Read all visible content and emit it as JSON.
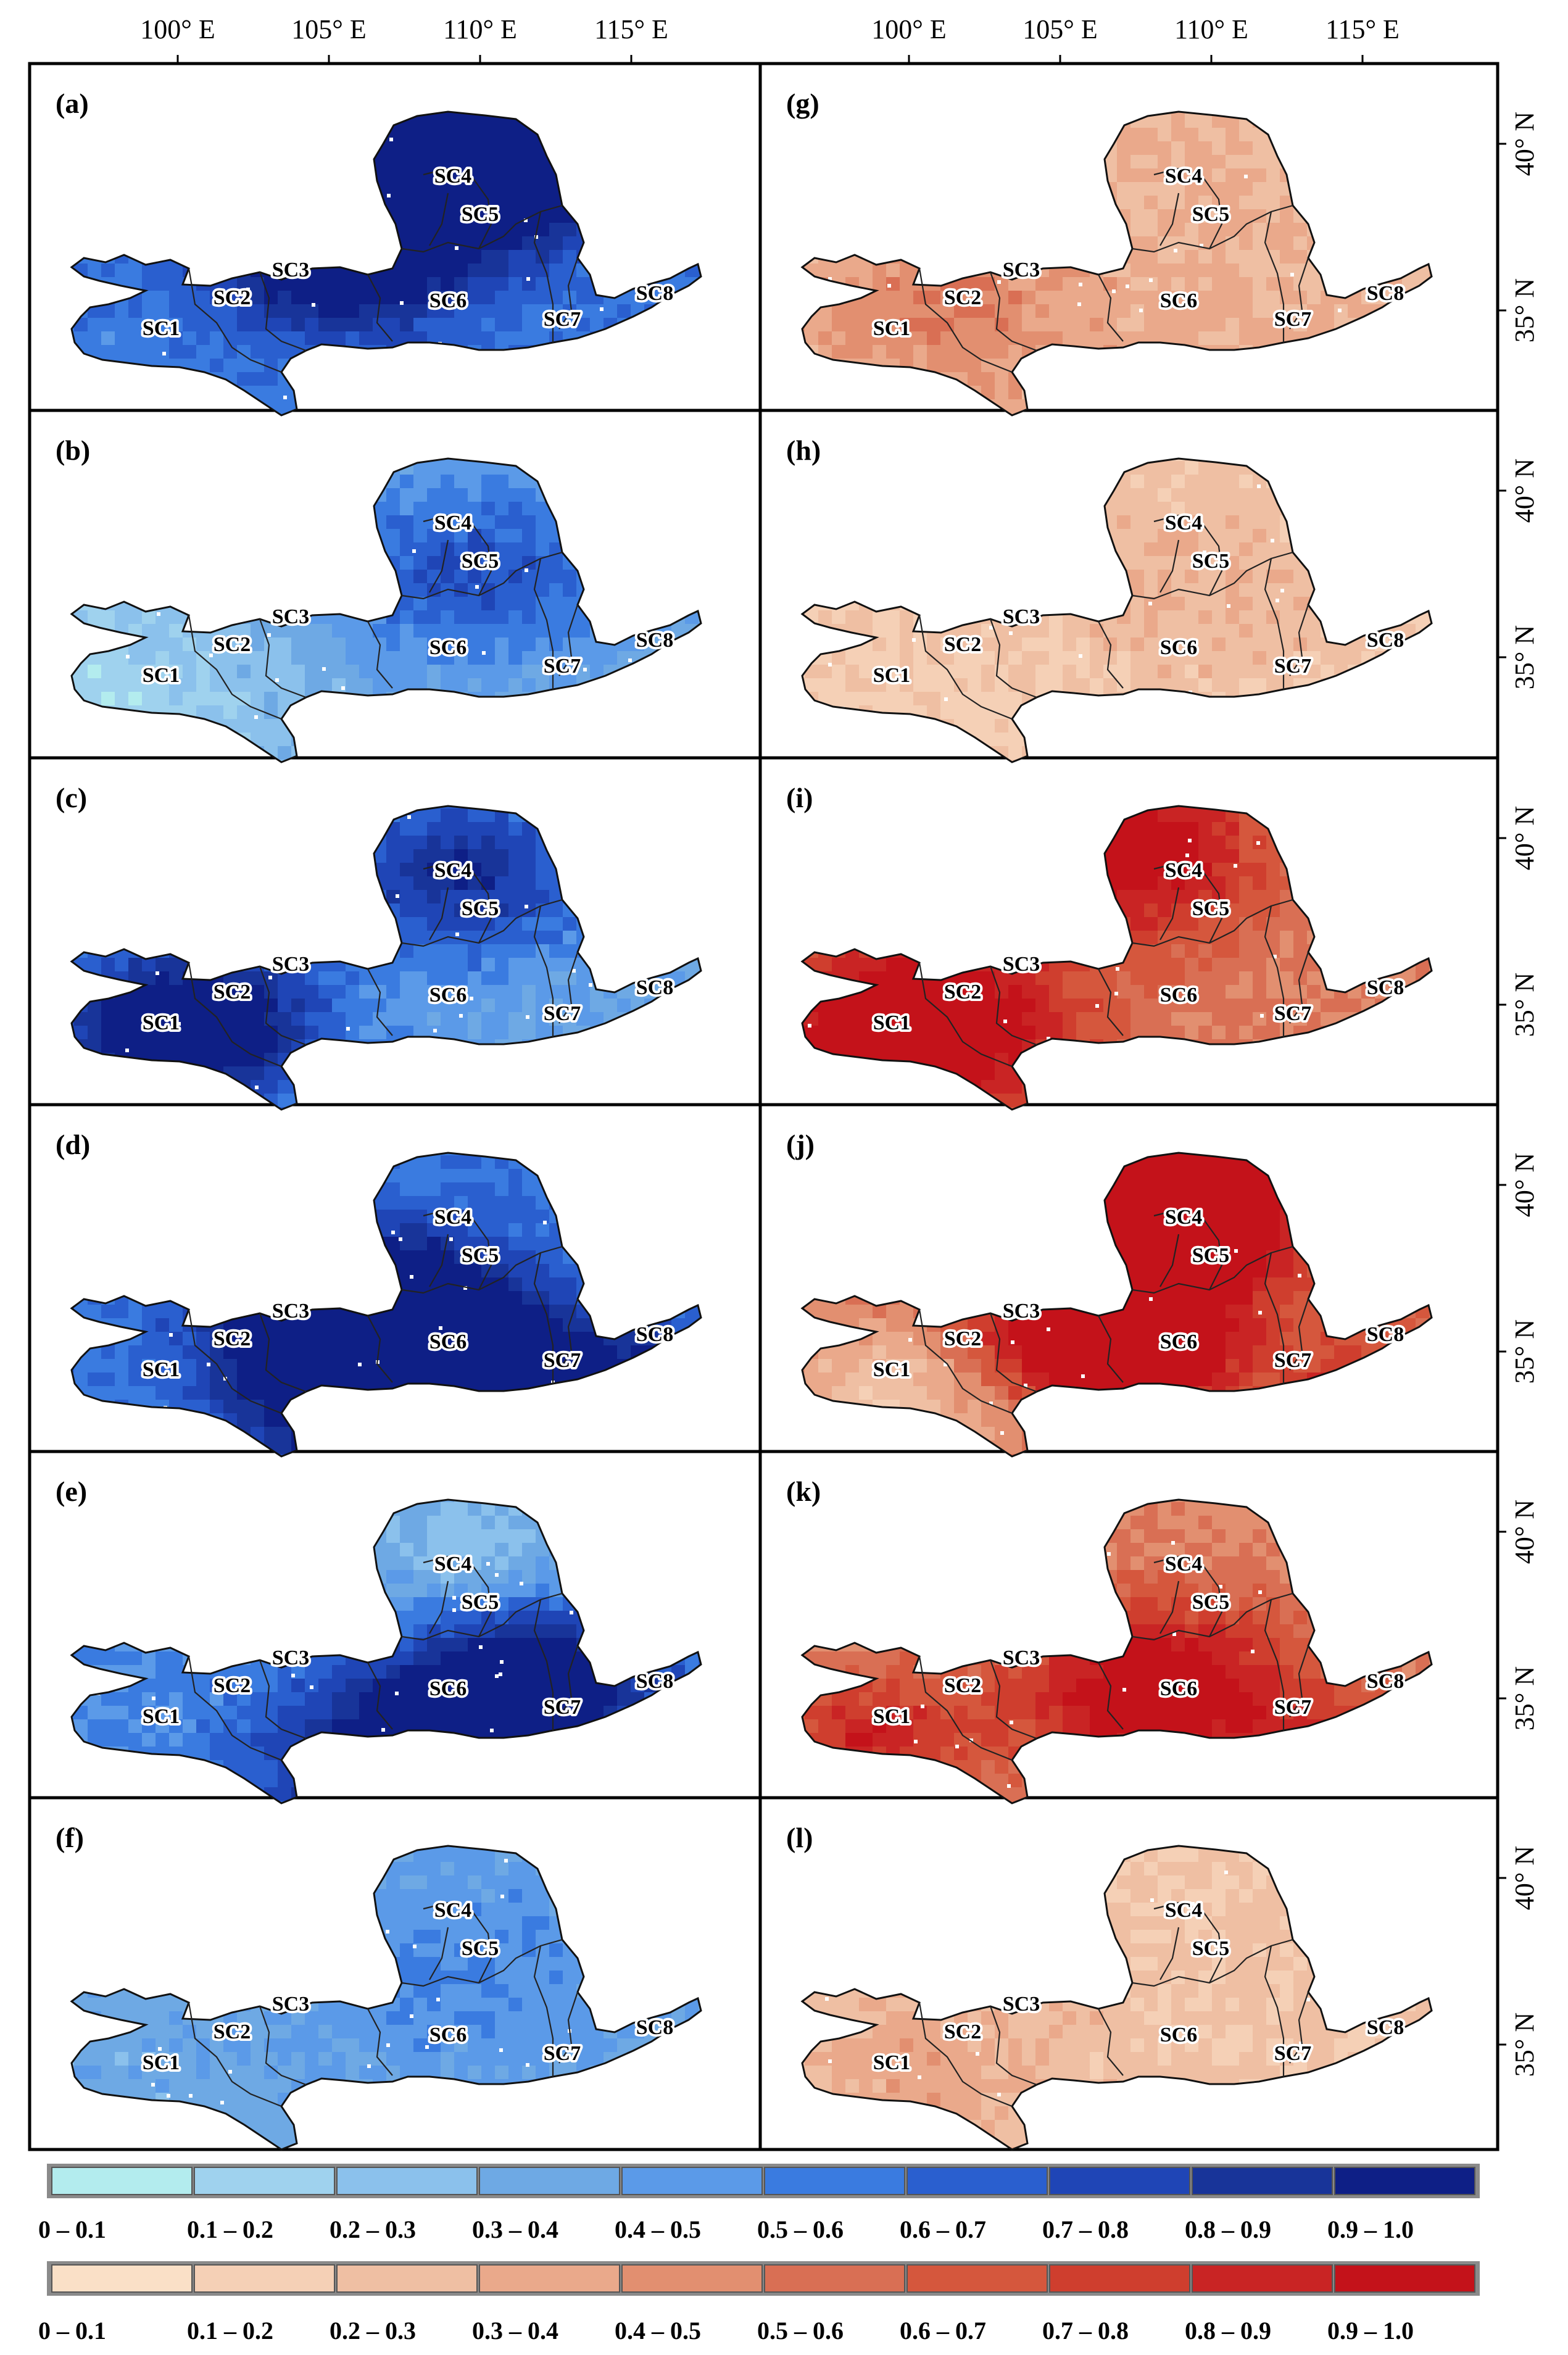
{
  "figure": {
    "lon_labels": [
      "100° E",
      "105° E",
      "110° E",
      "115° E"
    ],
    "lat_labels": [
      "40° N",
      "35° N"
    ],
    "subcatchments": [
      "SC1",
      "SC2",
      "SC3",
      "SC4",
      "SC5",
      "SC6",
      "SC7",
      "SC8"
    ],
    "panels": [
      {
        "label": "(a)",
        "ramp": "blue",
        "base": 0.55,
        "hot": [
          [
            0.58,
            0.12,
            0.95,
            0.16
          ],
          [
            0.42,
            0.45,
            0.6,
            0.12
          ]
        ]
      },
      {
        "label": "(b)",
        "ramp": "blue",
        "base": 0.28,
        "hot": [
          [
            0.62,
            0.35,
            0.42,
            0.18
          ],
          [
            0.1,
            0.72,
            -0.15,
            0.14
          ]
        ]
      },
      {
        "label": "(c)",
        "ramp": "blue",
        "base": 0.38,
        "hot": [
          [
            0.2,
            0.68,
            0.8,
            0.14
          ],
          [
            0.55,
            0.95,
            0.55,
            0.08
          ],
          [
            0.6,
            0.22,
            0.5,
            0.14
          ]
        ]
      },
      {
        "label": "(d)",
        "ramp": "blue",
        "base": 0.55,
        "hot": [
          [
            0.55,
            0.75,
            0.75,
            0.16
          ],
          [
            0.45,
            0.5,
            0.7,
            0.14
          ],
          [
            0.8,
            0.8,
            0.6,
            0.12
          ]
        ]
      },
      {
        "label": "(e)",
        "ramp": "blue",
        "base": 0.5,
        "hot": [
          [
            0.55,
            0.8,
            0.7,
            0.15
          ],
          [
            0.72,
            0.55,
            0.55,
            0.12
          ],
          [
            0.6,
            0.15,
            -0.25,
            0.12
          ]
        ]
      },
      {
        "label": "(f)",
        "ramp": "blue",
        "base": 0.35,
        "hot": [
          [
            0.6,
            0.4,
            0.15,
            0.2
          ]
        ]
      },
      {
        "label": "(g)",
        "ramp": "red",
        "base": 0.3,
        "hot": [
          [
            0.25,
            0.6,
            0.2,
            0.14
          ],
          [
            0.58,
            0.92,
            0.3,
            0.06
          ]
        ]
      },
      {
        "label": "(h)",
        "ramp": "red",
        "base": 0.18,
        "hot": [
          [
            0.62,
            0.4,
            0.12,
            0.18
          ]
        ]
      },
      {
        "label": "(i)",
        "ramp": "red",
        "base": 0.5,
        "hot": [
          [
            0.2,
            0.68,
            0.7,
            0.15
          ],
          [
            0.5,
            0.15,
            0.55,
            0.14
          ],
          [
            0.56,
            0.95,
            0.5,
            0.06
          ]
        ]
      },
      {
        "label": "(j)",
        "ramp": "red",
        "base": 0.55,
        "hot": [
          [
            0.47,
            0.55,
            0.85,
            0.13
          ],
          [
            0.58,
            0.15,
            0.75,
            0.14
          ],
          [
            0.88,
            0.85,
            0.7,
            0.1
          ],
          [
            0.18,
            0.75,
            -0.35,
            0.14
          ]
        ]
      },
      {
        "label": "(k)",
        "ramp": "red",
        "base": 0.45,
        "hot": [
          [
            0.55,
            0.6,
            0.6,
            0.16
          ],
          [
            0.88,
            0.82,
            0.55,
            0.1
          ],
          [
            0.12,
            0.72,
            0.4,
            0.1
          ]
        ]
      },
      {
        "label": "(l)",
        "ramp": "red",
        "base": 0.22,
        "hot": [
          [
            0.2,
            0.7,
            0.15,
            0.15
          ]
        ]
      }
    ]
  },
  "legend": {
    "classes": [
      "0 – 0.1",
      "0.1 – 0.2",
      "0.2 – 0.3",
      "0.3 – 0.4",
      "0.4 – 0.5",
      "0.5 – 0.6",
      "0.6 – 0.7",
      "0.7 – 0.8",
      "0.8 – 0.9",
      "0.9 – 1.0"
    ],
    "blue_colors": [
      "#b3ecee",
      "#9fd2ee",
      "#8bc1ec",
      "#6ea9e4",
      "#5b9ae8",
      "#3a7be0",
      "#2a5fcf",
      "#1f45b6",
      "#183499",
      "#0e1f86"
    ],
    "red_colors": [
      "#fae0c7",
      "#f5d0b6",
      "#efbfa3",
      "#eaa98b",
      "#e28f70",
      "#d96f54",
      "#d5573d",
      "#cf3e2e",
      "#c92424",
      "#c4121a"
    ]
  }
}
